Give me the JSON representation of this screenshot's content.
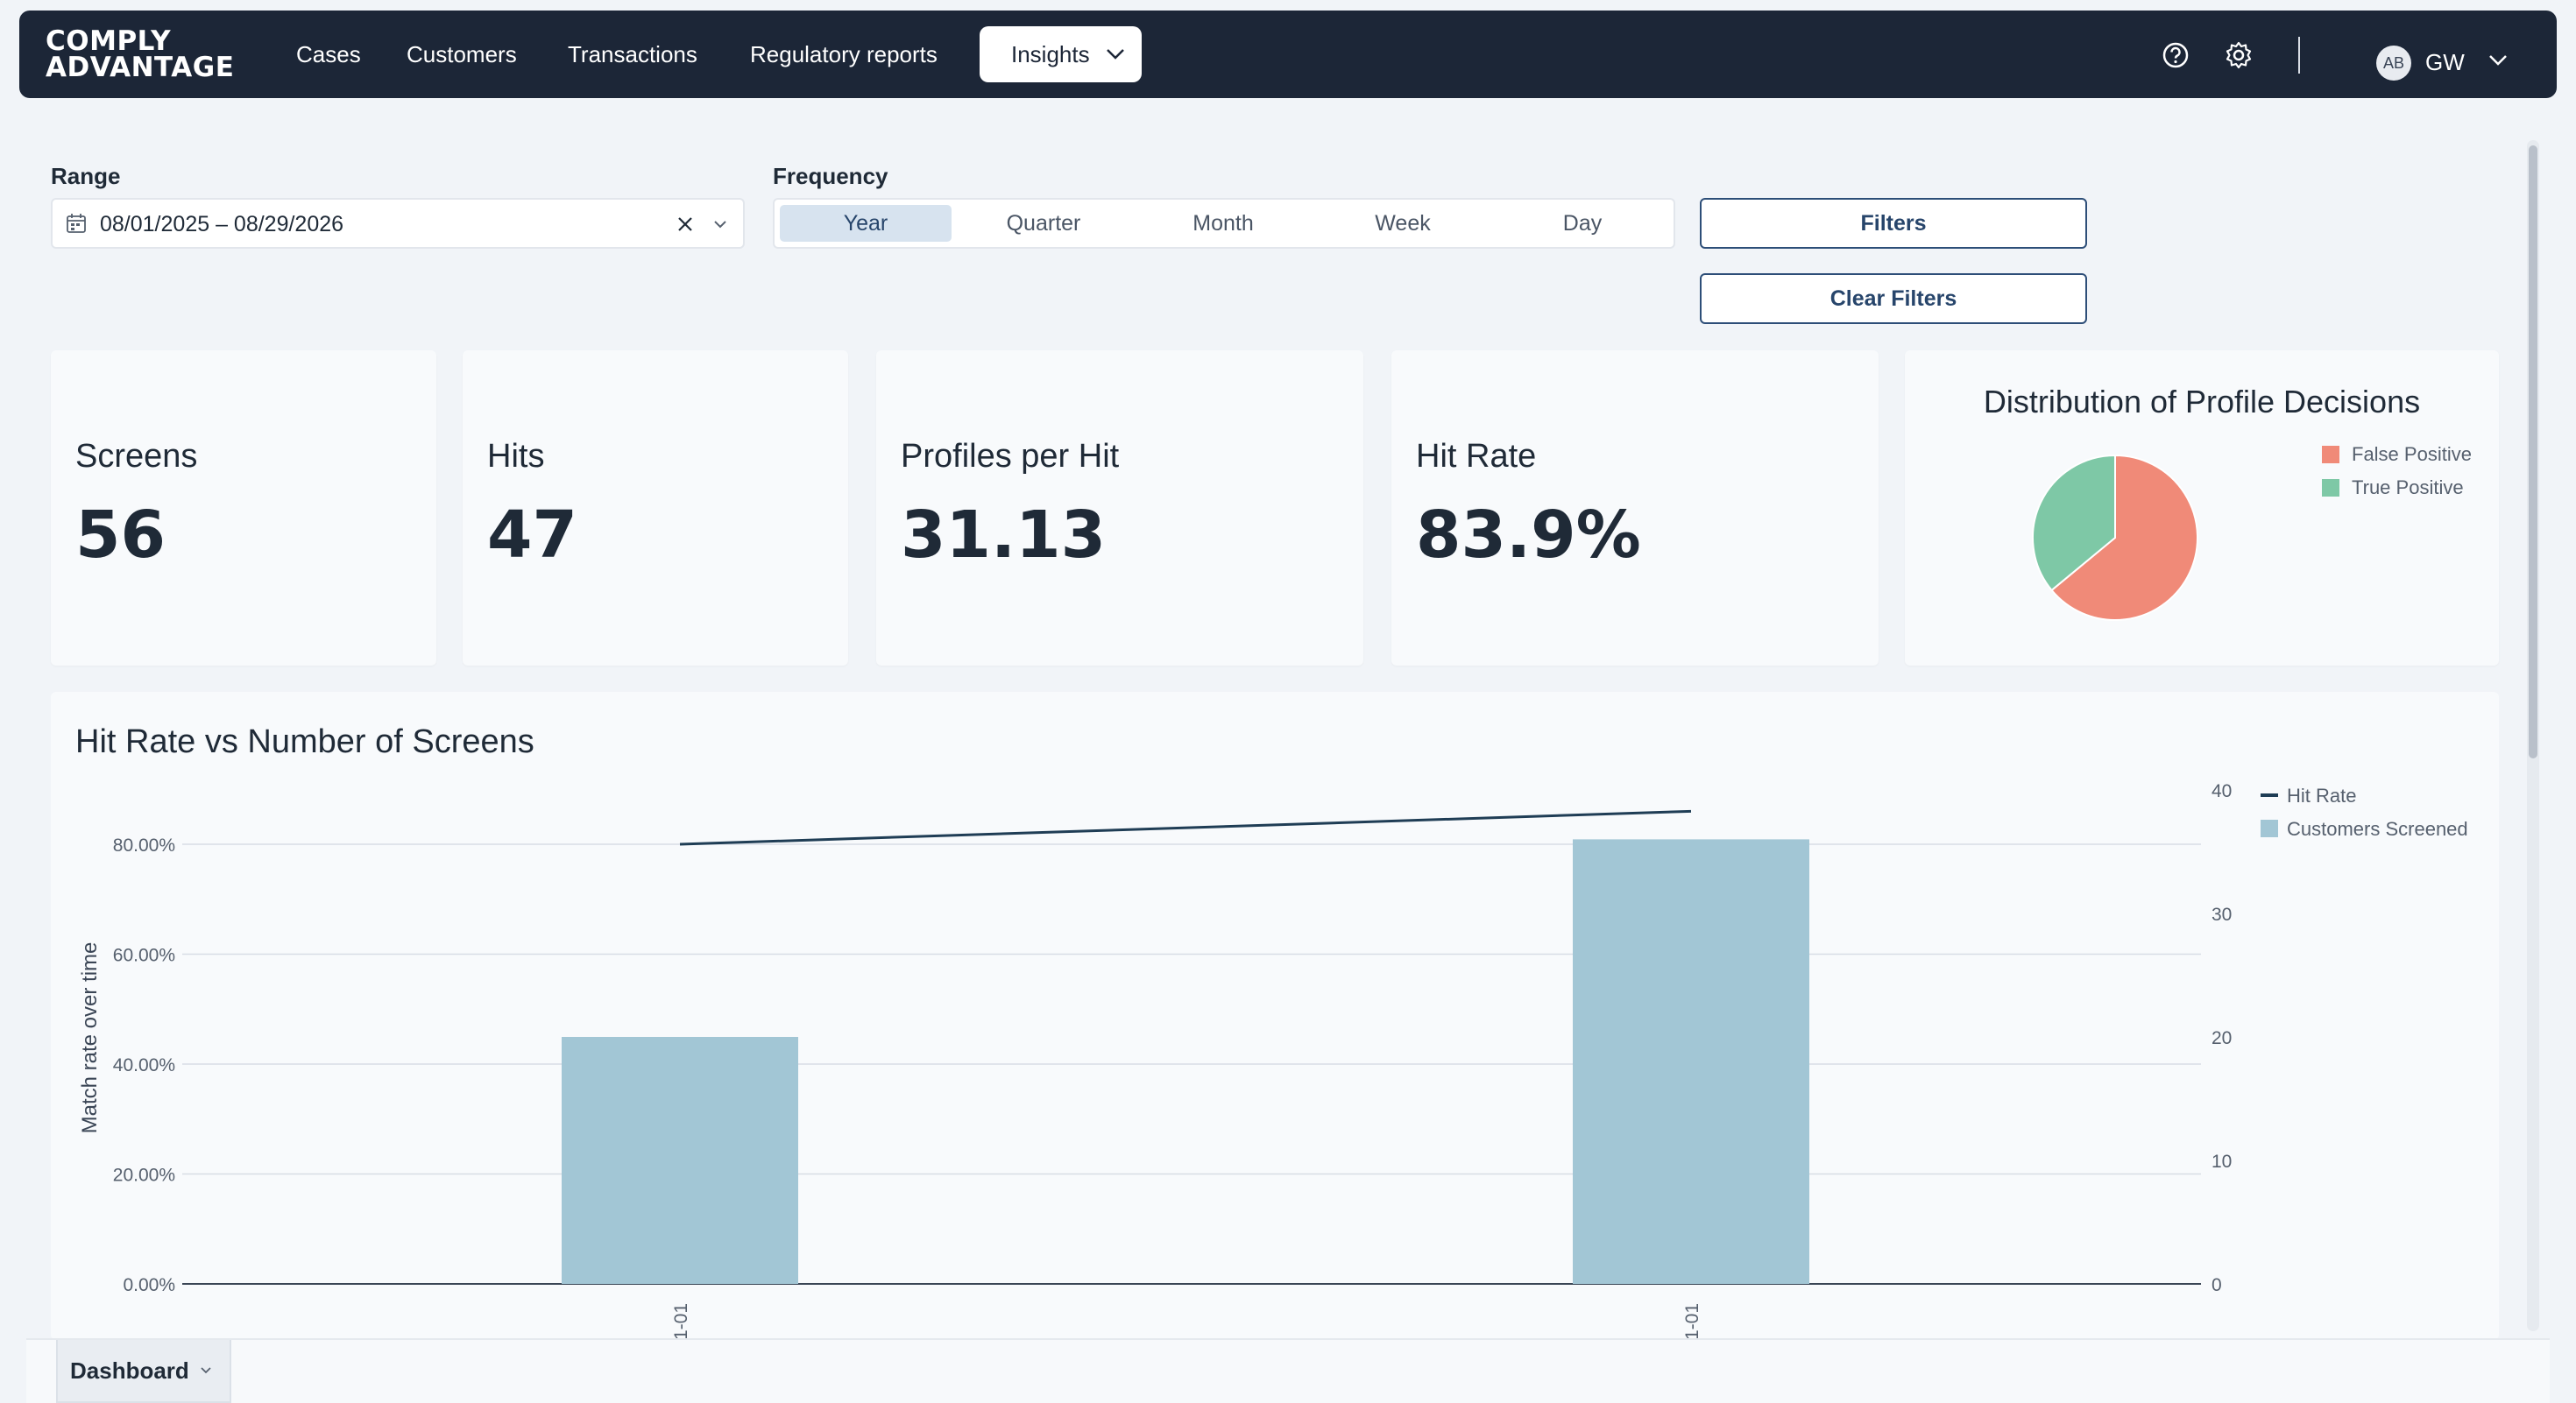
{
  "nav": {
    "logo_line1": "COMPLY",
    "logo_line2": "ADVANTAGE",
    "links": [
      "Cases",
      "Customers",
      "Transactions",
      "Regulatory reports"
    ],
    "active_menu": "Insights",
    "user_initials": "AB",
    "user_name": "GW"
  },
  "filters": {
    "range_label": "Range",
    "range_value": "08/01/2025 – 08/29/2026",
    "frequency_label": "Frequency",
    "frequency_options": [
      "Year",
      "Quarter",
      "Month",
      "Week",
      "Day"
    ],
    "frequency_selected": "Year",
    "filters_button": "Filters",
    "clear_button": "Clear Filters"
  },
  "kpis": [
    {
      "title": "Screens",
      "value": "56"
    },
    {
      "title": "Hits",
      "value": "47"
    },
    {
      "title": "Profiles per Hit",
      "value": "31.13"
    },
    {
      "title": "Hit Rate",
      "value": "83.9%"
    }
  ],
  "pie": {
    "title": "Distribution of Profile Decisions",
    "slices": [
      {
        "name": "False Positive",
        "value": 64,
        "color": "#f08a78"
      },
      {
        "name": "True Positive",
        "value": 36,
        "color": "#7ec8a6"
      }
    ]
  },
  "chart_data": {
    "type": "bar",
    "title": "Hit Rate vs Number of Screens",
    "ylabel": "Match rate over time",
    "categories": [
      "…1-01",
      "…1-01"
    ],
    "y_left_ticks": [
      "0.00%",
      "20.00%",
      "40.00%",
      "60.00%",
      "80.00%"
    ],
    "y_left_lim": [
      0,
      80
    ],
    "y_right_ticks": [
      "0",
      "10",
      "20",
      "30",
      "40"
    ],
    "y_right_lim": [
      0,
      40
    ],
    "series": [
      {
        "name": "Customers Screened",
        "kind": "bar",
        "axis": "right",
        "values": [
          20,
          36
        ],
        "color": "#a2c6d5"
      },
      {
        "name": "Hit Rate",
        "kind": "line",
        "axis": "left",
        "values": [
          80,
          86
        ],
        "color": "#1f3d55"
      }
    ],
    "legend": [
      "Hit Rate",
      "Customers Screened"
    ],
    "legend_position": "top-right"
  },
  "bottom": {
    "tab_label": "Dashboard"
  }
}
